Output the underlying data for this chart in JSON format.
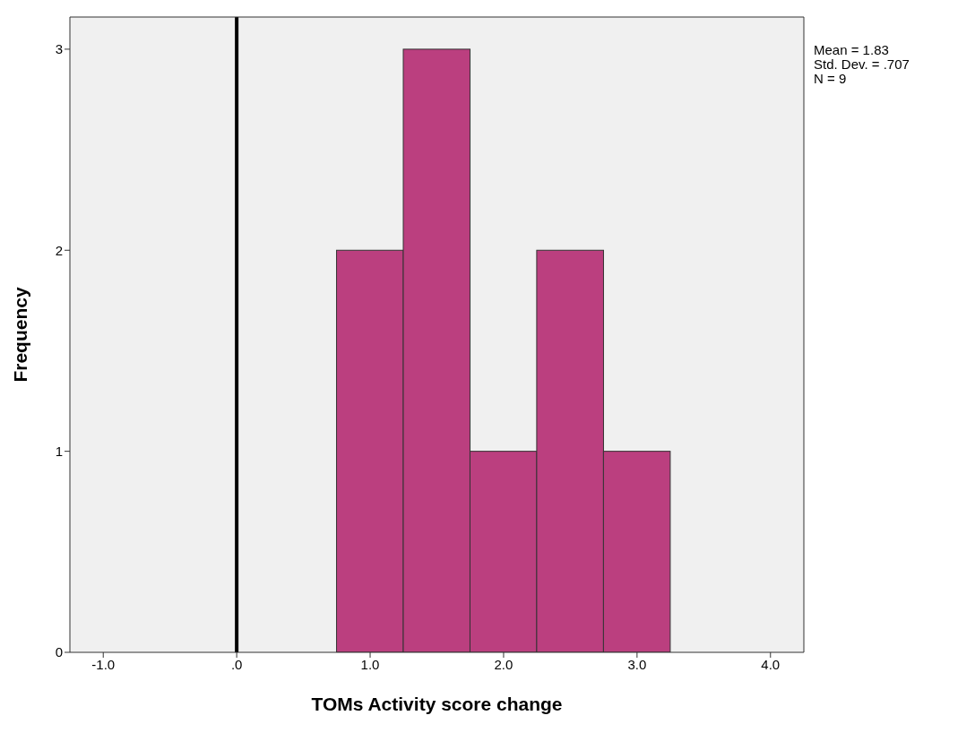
{
  "chart_data": {
    "type": "histogram",
    "xlabel": "TOMs Activity score change",
    "ylabel": "Frequency",
    "bins": [
      0.75,
      1.25,
      1.75,
      2.25,
      2.75,
      3.25
    ],
    "values": [
      2,
      3,
      1,
      2,
      1
    ],
    "color": "#bb3f7f",
    "xlim": [
      -1.25,
      4.25
    ],
    "xticks": [
      {
        "value": -1,
        "label": "-1.0"
      },
      {
        "value": 0,
        "label": ".0"
      },
      {
        "value": 1,
        "label": "1.0"
      },
      {
        "value": 2,
        "label": "2.0"
      },
      {
        "value": 3,
        "label": "3.0"
      },
      {
        "value": 4,
        "label": "4.0"
      }
    ],
    "ylim": [
      0,
      3.16
    ],
    "yticks": [
      0,
      1,
      2,
      3
    ],
    "ref_lines": [
      {
        "axis": "x",
        "value": 0,
        "color": "#000000"
      }
    ],
    "annotations": [
      "Mean = 1.83",
      "Std. Dev. = .707",
      "N = 9"
    ],
    "grid": false
  }
}
